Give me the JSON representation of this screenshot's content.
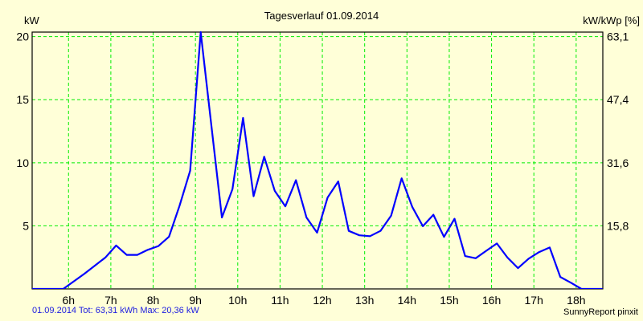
{
  "chart_data": {
    "type": "line",
    "title": "Tagesverlauf 01.09.2014",
    "ylabel": "kW",
    "ylabel_right": "kW/kWp [%]",
    "xlabel": "",
    "xlim": [
      5.14,
      18.63
    ],
    "ylim": [
      0,
      20.36
    ],
    "grid": true,
    "x_ticks": [
      6,
      7,
      8,
      9,
      10,
      11,
      12,
      13,
      14,
      15,
      16,
      17,
      18
    ],
    "x_tick_labels": [
      "6h",
      "7h",
      "8h",
      "9h",
      "10h",
      "11h",
      "12h",
      "13h",
      "14h",
      "15h",
      "16h",
      "17h",
      "18h"
    ],
    "y_ticks": [
      5,
      10,
      15,
      20
    ],
    "y_tick_labels": [
      "5",
      "10",
      "15",
      "20"
    ],
    "y_right_tick_labels": [
      "15,8",
      "31,6",
      "47,4",
      "63,1"
    ],
    "series": [
      {
        "name": "kW",
        "color": "#0000FF",
        "x": [
          5.125,
          5.875,
          6.125,
          6.375,
          6.625,
          6.875,
          7.125,
          7.375,
          7.625,
          7.875,
          8.125,
          8.375,
          8.625,
          8.875,
          9.125,
          9.375,
          9.625,
          9.875,
          10.125,
          10.375,
          10.625,
          10.875,
          11.125,
          11.375,
          11.625,
          11.875,
          12.125,
          12.375,
          12.625,
          12.875,
          13.125,
          13.375,
          13.625,
          13.875,
          14.125,
          14.375,
          14.625,
          14.875,
          15.125,
          15.375,
          15.625,
          15.875,
          16.125,
          16.375,
          16.625,
          16.875,
          17.125,
          17.375,
          17.625,
          17.875,
          18.125,
          18.375,
          18.625
        ],
        "y": [
          0,
          0,
          0.6,
          1.2,
          1.85,
          2.5,
          3.44,
          2.7,
          2.7,
          3.1,
          3.4,
          4.14,
          6.6,
          9.37,
          20.36,
          13.0,
          5.66,
          7.9,
          13.55,
          7.35,
          10.48,
          7.78,
          6.55,
          8.62,
          5.66,
          4.46,
          7.25,
          8.52,
          4.6,
          4.25,
          4.18,
          4.6,
          5.8,
          8.77,
          6.5,
          4.97,
          5.88,
          4.12,
          5.56,
          2.6,
          2.43,
          3.02,
          3.6,
          2.49,
          1.65,
          2.39,
          2.92,
          3.28,
          0.95,
          0.49,
          0,
          0,
          0
        ]
      }
    ]
  },
  "footer": {
    "summary": "01.09.2014 Tot: 63,31 kWh Max: 20,36 kW",
    "credit": "SunnyReport pinxit"
  }
}
